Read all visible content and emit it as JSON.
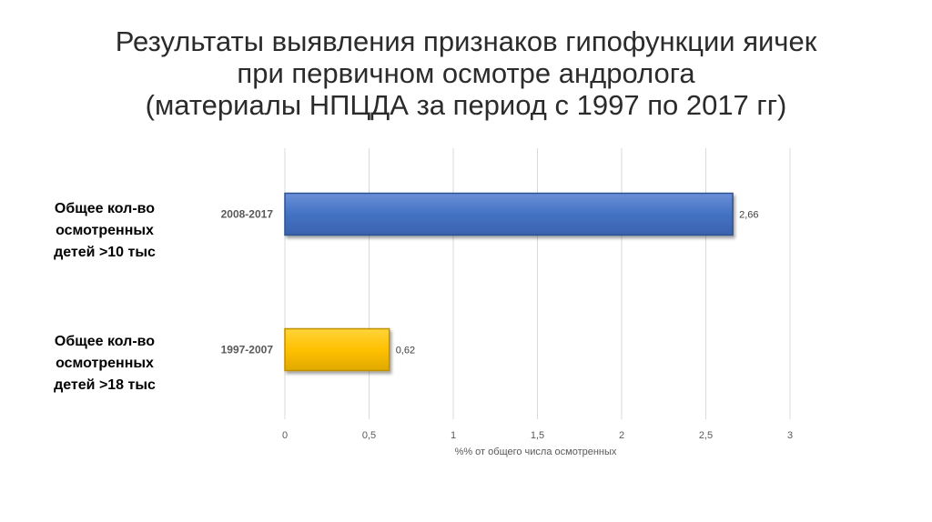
{
  "title_lines": [
    "Результаты выявления признаков гипофункции яичек",
    "при первичном осмотре андролога",
    "(материалы НПЦДА за период с 1997 по 2017 гг)"
  ],
  "side_notes": [
    "Общее кол-во осмотренных детей >10 тыс",
    "Общее кол-во осмотренных детей >18 тыс"
  ],
  "chart_data": {
    "type": "bar",
    "orientation": "horizontal",
    "categories": [
      "2008-2017",
      "1997-2007"
    ],
    "values": [
      2.66,
      0.62
    ],
    "value_labels": [
      "2,66",
      "0,62"
    ],
    "colors": [
      "#4472C4",
      "#FFC000"
    ],
    "xlabel": "%% от общего числа осмотренных",
    "xlim": [
      0,
      3
    ],
    "xticks": [
      0,
      0.5,
      1,
      1.5,
      2,
      2.5,
      3
    ],
    "xtick_labels": [
      "0",
      "0,5",
      "1",
      "1,5",
      "2",
      "2,5",
      "3"
    ],
    "grid": "vertical",
    "legend": "none"
  }
}
